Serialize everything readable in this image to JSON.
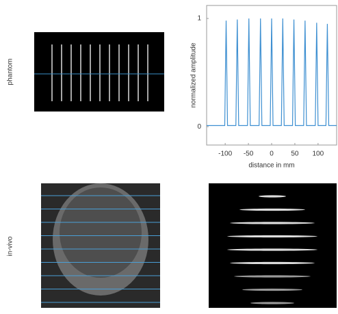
{
  "row_labels": [
    "phantom",
    "in-vivo"
  ],
  "chart_data": {
    "type": "line",
    "x_label": "distance in mm",
    "y_label": "normalized amplitude",
    "x": [
      -140,
      -101,
      -98,
      -95,
      -77,
      -74,
      -71,
      -52,
      -49,
      -46,
      -27,
      -24,
      -21,
      -3,
      0,
      3,
      21,
      24,
      27,
      45,
      48,
      51,
      69,
      72,
      75,
      94,
      97,
      100,
      117,
      120,
      123,
      140
    ],
    "series": [
      {
        "color": "#3d8fd1",
        "values": [
          0.01,
          0.01,
          0.98,
          0.01,
          0.01,
          0.99,
          0.01,
          0.01,
          1.0,
          0.01,
          0.01,
          1.0,
          0.01,
          0.01,
          1.0,
          0.01,
          0.01,
          1.0,
          0.01,
          0.01,
          0.99,
          0.01,
          0.01,
          0.98,
          0.01,
          0.01,
          0.96,
          0.01,
          0.01,
          0.95,
          0.01,
          0.01
        ]
      }
    ],
    "xlim": [
      -140,
      140
    ],
    "ylim": [
      -0.17,
      1.12
    ],
    "xticks": [
      -100,
      -50,
      0,
      50,
      100
    ],
    "yticks": [
      0,
      1
    ],
    "grid": false
  }
}
